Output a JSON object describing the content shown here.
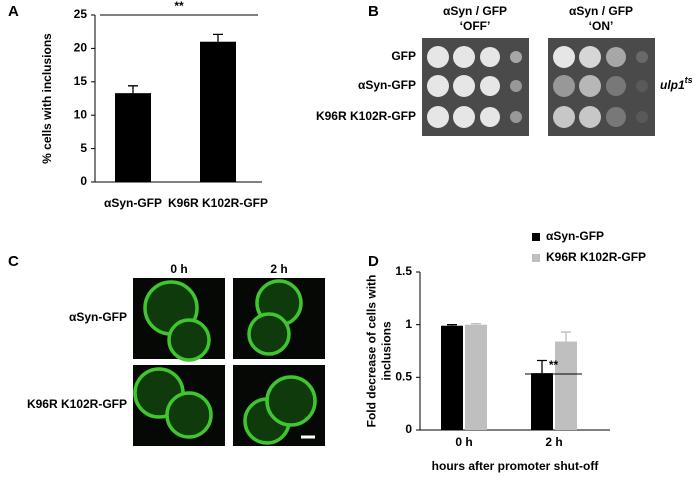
{
  "chart_data": [
    {
      "type": "bar",
      "panel": "A",
      "ylabel": [
        "% cells with inclusions"
      ],
      "categories": [
        "αSyn-GFP",
        "K96R K102R-GFP"
      ],
      "values": [
        13.3,
        21
      ],
      "errors": [
        1.1,
        1.1
      ],
      "color": "#000000",
      "ylim": [
        0,
        25
      ],
      "yticks": [
        0,
        5,
        10,
        15,
        20,
        25
      ],
      "annotation": "**"
    },
    {
      "type": "bar",
      "panel": "D",
      "ylabel": [
        "Fold decrease of cells with",
        "inclusions"
      ],
      "xlabel": "hours after promoter shut-off",
      "categories": [
        "0 h",
        "2 h"
      ],
      "series": [
        {
          "name": "αSyn-GFP",
          "color": "#000000",
          "values": [
            0.99,
            0.54
          ],
          "errors": [
            0.01,
            0.12
          ]
        },
        {
          "name": "K96R K102R-GFP",
          "color": "#bfbfbf",
          "values": [
            1.0,
            0.84
          ],
          "errors": [
            0.01,
            0.09
          ]
        }
      ],
      "ylim": [
        0,
        1.5
      ],
      "yticks": [
        0,
        0.5,
        1,
        1.5
      ],
      "annotation": "**"
    }
  ],
  "spot_assay": {
    "panel": "B",
    "columns": [
      [
        "αSyn / GFP",
        "‘OFF’"
      ],
      [
        "αSyn / GFP",
        "‘ON’"
      ]
    ],
    "rows": [
      "GFP",
      "αSyn-GFP",
      "K96R K102R-GFP"
    ],
    "strain": "ulp1",
    "strain_sup": "ts"
  },
  "microscopy": {
    "panel": "C",
    "columns": [
      "0 h",
      "2 h"
    ],
    "rows": [
      "αSyn-GFP",
      "K96R K102R-GFP"
    ]
  }
}
